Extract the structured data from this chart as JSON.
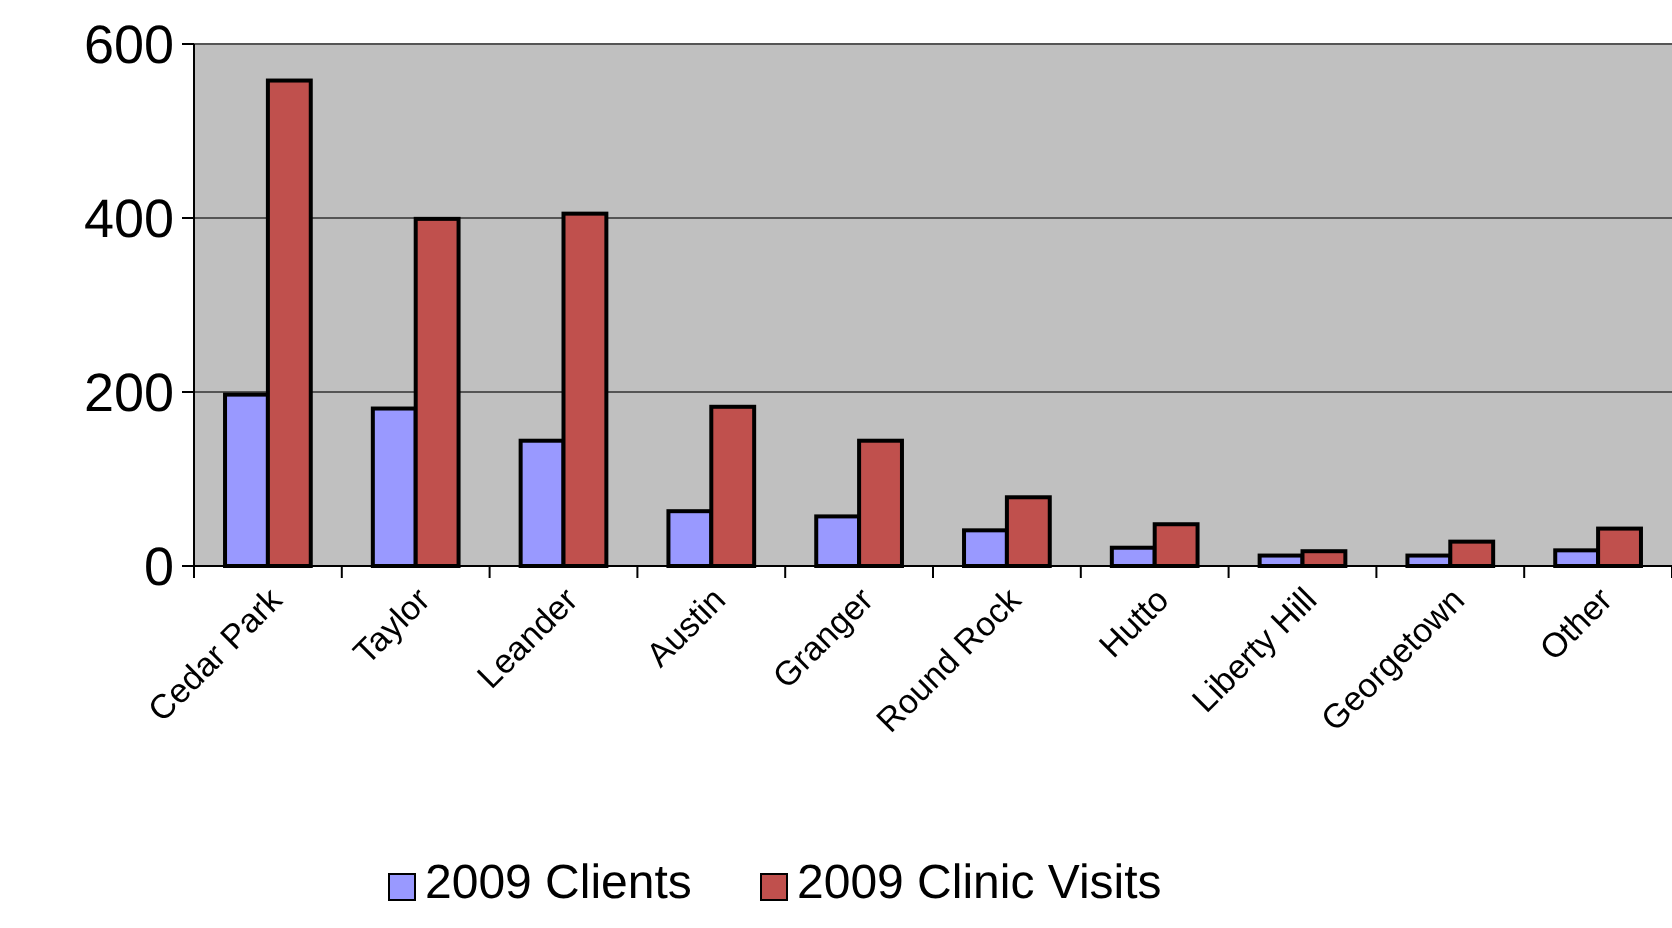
{
  "chart_data": {
    "type": "bar",
    "categories": [
      "Cedar Park",
      "Taylor",
      "Leander",
      "Austin",
      "Granger",
      "Round Rock",
      "Hutto",
      "Liberty Hill",
      "Georgetown",
      "Other"
    ],
    "series": [
      {
        "name": "2009 Clients",
        "color": "#9999ff",
        "values": [
          197,
          181,
          144,
          63,
          57,
          41,
          21,
          12,
          12,
          18
        ]
      },
      {
        "name": "2009 Clinic Visits",
        "color": "#c0504d",
        "values": [
          558,
          399,
          405,
          183,
          144,
          79,
          48,
          17,
          28,
          43
        ]
      }
    ],
    "ylim": [
      0,
      600
    ],
    "yticks": [
      0,
      200,
      400,
      600
    ],
    "grid": "y",
    "legend": "bottom"
  }
}
